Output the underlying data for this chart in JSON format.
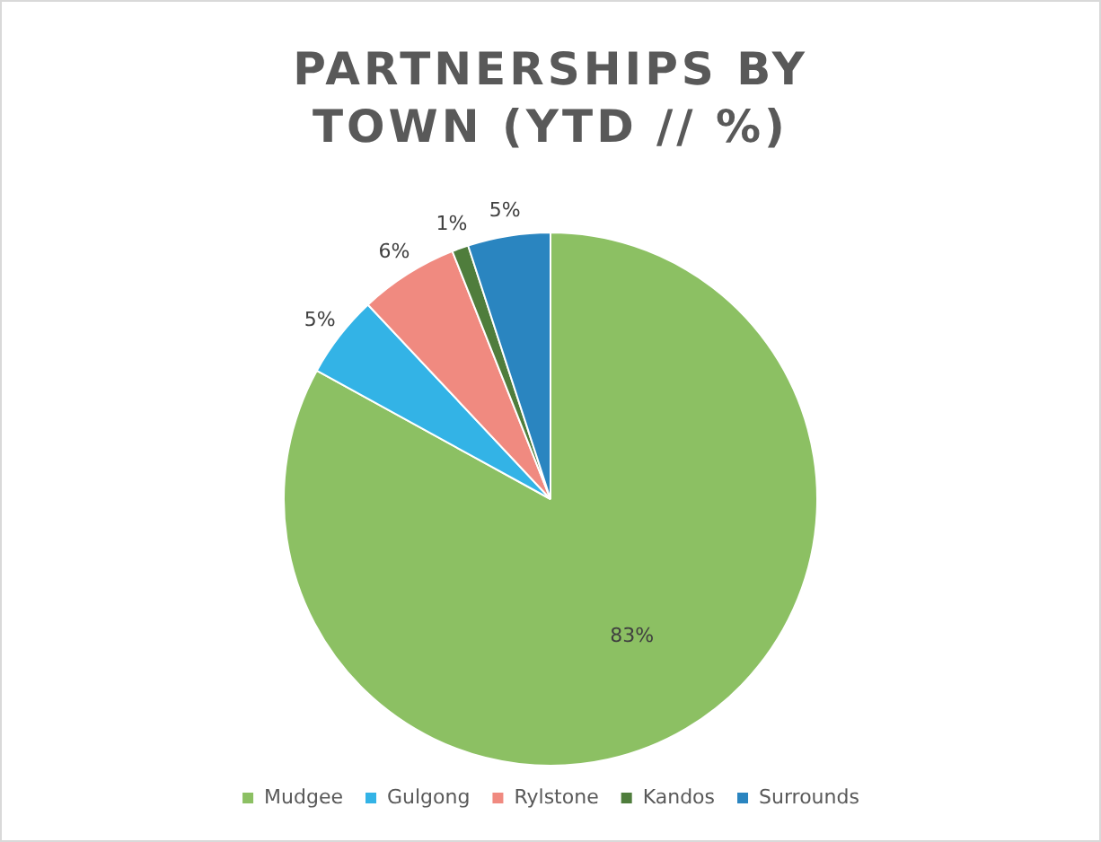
{
  "chart_data": {
    "type": "pie",
    "title": "PARTNERSHIPS BY TOWN (YTD // %)",
    "categories": [
      "Mudgee",
      "Gulgong",
      "Rylstone",
      "Kandos",
      "Surrounds"
    ],
    "values": [
      83,
      5,
      6,
      1,
      5
    ],
    "value_labels": [
      "83%",
      "5%",
      "6%",
      "1%",
      "5%"
    ],
    "colors": [
      "#8cc063",
      "#33b3e6",
      "#f08a80",
      "#4f7d3c",
      "#2a85c0"
    ],
    "legend": "bottom"
  }
}
